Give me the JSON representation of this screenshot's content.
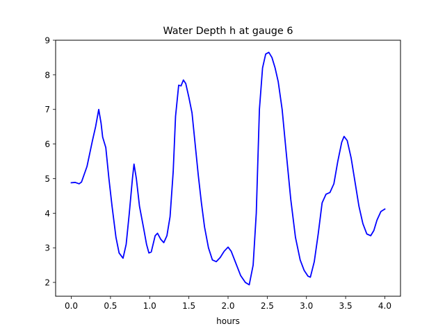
{
  "chart_data": {
    "type": "line",
    "title": "Water Depth h at gauge 6",
    "xlabel": "hours",
    "ylabel": "",
    "xlim": [
      -0.2,
      4.2
    ],
    "ylim": [
      1.6,
      9.0
    ],
    "xticks": [
      0.0,
      0.5,
      1.0,
      1.5,
      2.0,
      2.5,
      3.0,
      3.5,
      4.0
    ],
    "xtick_labels": [
      "0.0",
      "0.5",
      "1.0",
      "1.5",
      "2.0",
      "2.5",
      "3.0",
      "3.5",
      "4.0"
    ],
    "yticks": [
      2,
      3,
      4,
      5,
      6,
      7,
      8,
      9
    ],
    "ytick_labels": [
      "2",
      "3",
      "4",
      "5",
      "6",
      "7",
      "8",
      "9"
    ],
    "grid": false,
    "legend": "none",
    "series": [
      {
        "color": "#0000ff",
        "points": [
          [
            0.0,
            4.88
          ],
          [
            0.05,
            4.89
          ],
          [
            0.1,
            4.85
          ],
          [
            0.13,
            4.9
          ],
          [
            0.2,
            5.35
          ],
          [
            0.27,
            6.1
          ],
          [
            0.31,
            6.5
          ],
          [
            0.35,
            7.0
          ],
          [
            0.38,
            6.6
          ],
          [
            0.4,
            6.2
          ],
          [
            0.44,
            5.9
          ],
          [
            0.48,
            5.0
          ],
          [
            0.52,
            4.2
          ],
          [
            0.57,
            3.3
          ],
          [
            0.61,
            2.85
          ],
          [
            0.66,
            2.7
          ],
          [
            0.7,
            3.1
          ],
          [
            0.74,
            4.0
          ],
          [
            0.78,
            5.0
          ],
          [
            0.8,
            5.42
          ],
          [
            0.83,
            5.0
          ],
          [
            0.87,
            4.2
          ],
          [
            0.92,
            3.6
          ],
          [
            0.96,
            3.1
          ],
          [
            0.99,
            2.85
          ],
          [
            1.02,
            2.88
          ],
          [
            1.07,
            3.35
          ],
          [
            1.1,
            3.42
          ],
          [
            1.14,
            3.25
          ],
          [
            1.18,
            3.15
          ],
          [
            1.22,
            3.35
          ],
          [
            1.26,
            3.9
          ],
          [
            1.3,
            5.2
          ],
          [
            1.33,
            6.8
          ],
          [
            1.37,
            7.7
          ],
          [
            1.4,
            7.68
          ],
          [
            1.43,
            7.85
          ],
          [
            1.46,
            7.75
          ],
          [
            1.5,
            7.35
          ],
          [
            1.54,
            6.9
          ],
          [
            1.58,
            6.0
          ],
          [
            1.62,
            5.1
          ],
          [
            1.66,
            4.3
          ],
          [
            1.7,
            3.6
          ],
          [
            1.75,
            3.0
          ],
          [
            1.8,
            2.65
          ],
          [
            1.85,
            2.6
          ],
          [
            1.9,
            2.72
          ],
          [
            1.95,
            2.9
          ],
          [
            2.0,
            3.02
          ],
          [
            2.04,
            2.9
          ],
          [
            2.1,
            2.55
          ],
          [
            2.16,
            2.2
          ],
          [
            2.22,
            2.0
          ],
          [
            2.27,
            1.93
          ],
          [
            2.32,
            2.5
          ],
          [
            2.36,
            4.0
          ],
          [
            2.4,
            7.0
          ],
          [
            2.44,
            8.2
          ],
          [
            2.48,
            8.6
          ],
          [
            2.52,
            8.65
          ],
          [
            2.56,
            8.5
          ],
          [
            2.6,
            8.2
          ],
          [
            2.64,
            7.8
          ],
          [
            2.69,
            7.0
          ],
          [
            2.74,
            5.8
          ],
          [
            2.8,
            4.4
          ],
          [
            2.86,
            3.3
          ],
          [
            2.92,
            2.65
          ],
          [
            2.97,
            2.35
          ],
          [
            3.02,
            2.18
          ],
          [
            3.05,
            2.15
          ],
          [
            3.1,
            2.6
          ],
          [
            3.15,
            3.4
          ],
          [
            3.2,
            4.3
          ],
          [
            3.25,
            4.55
          ],
          [
            3.3,
            4.6
          ],
          [
            3.35,
            4.85
          ],
          [
            3.4,
            5.5
          ],
          [
            3.45,
            6.05
          ],
          [
            3.48,
            6.22
          ],
          [
            3.52,
            6.1
          ],
          [
            3.57,
            5.6
          ],
          [
            3.62,
            4.9
          ],
          [
            3.67,
            4.2
          ],
          [
            3.72,
            3.7
          ],
          [
            3.77,
            3.4
          ],
          [
            3.82,
            3.35
          ],
          [
            3.86,
            3.5
          ],
          [
            3.9,
            3.8
          ],
          [
            3.95,
            4.05
          ],
          [
            4.0,
            4.12
          ]
        ]
      }
    ]
  }
}
